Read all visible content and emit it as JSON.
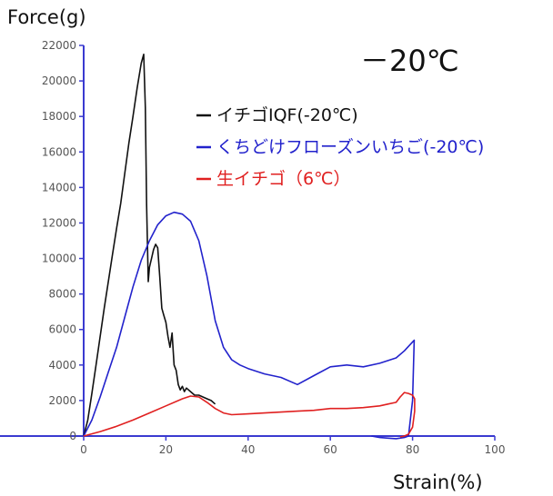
{
  "chart_data": {
    "type": "line",
    "title": "",
    "annotation": "－20℃",
    "xlabel": "Strain(%)",
    "ylabel": "Force(g)",
    "xlim": [
      0,
      100
    ],
    "ylim": [
      0,
      22000
    ],
    "xticks": [
      0,
      20,
      40,
      60,
      80,
      100
    ],
    "yticks": [
      0,
      2000,
      4000,
      6000,
      8000,
      10000,
      12000,
      14000,
      16000,
      18000,
      20000,
      22000
    ],
    "grid": false,
    "legend_position": "upper-right",
    "series": [
      {
        "name": "イチゴIQF(-20℃)",
        "color": "#111111",
        "x": [
          0,
          1,
          2,
          3,
          4,
          5,
          6,
          7,
          8,
          9,
          10,
          11,
          12,
          13,
          14,
          14.6,
          15,
          15.3,
          15.7,
          16,
          16.5,
          17,
          17.5,
          18,
          18.5,
          19,
          19.5,
          20,
          20.5,
          21,
          21.5,
          22,
          22.5,
          23,
          23.5,
          24,
          24.5,
          25,
          26,
          27,
          28,
          29,
          30,
          31,
          32
        ],
        "y": [
          0,
          900,
          2400,
          4000,
          5600,
          7200,
          8700,
          10200,
          11700,
          13100,
          14800,
          16500,
          18000,
          19600,
          21000,
          21500,
          18500,
          13000,
          8700,
          9500,
          10000,
          10500,
          10800,
          10600,
          9000,
          7200,
          6800,
          6400,
          5600,
          5000,
          5800,
          4000,
          3700,
          2900,
          2600,
          2800,
          2500,
          2700,
          2500,
          2300,
          2300,
          2200,
          2100,
          2000,
          1800
        ]
      },
      {
        "name": "くちどけフローズンいちご(-20℃)",
        "color": "#2222cc",
        "x": [
          0,
          2,
          4,
          6,
          8,
          10,
          12,
          14,
          16,
          18,
          20,
          22,
          24,
          26,
          28,
          30,
          32,
          34,
          36,
          38,
          40,
          44,
          48,
          52,
          56,
          60,
          64,
          68,
          72,
          76,
          78,
          80,
          80.4,
          80,
          79,
          78,
          76,
          74,
          72,
          70
        ],
        "y": [
          0,
          900,
          2200,
          3600,
          5000,
          6700,
          8400,
          9900,
          11000,
          11900,
          12400,
          12600,
          12500,
          12100,
          11000,
          9000,
          6500,
          5000,
          4300,
          4000,
          3800,
          3500,
          3300,
          2900,
          3400,
          3900,
          4000,
          3900,
          4100,
          4400,
          4800,
          5300,
          5400,
          2000,
          0,
          -80,
          -150,
          -120,
          -80,
          0
        ]
      },
      {
        "name": "生イチゴ（6℃）",
        "color": "#e02020",
        "x": [
          0,
          4,
          8,
          12,
          16,
          20,
          24,
          26,
          28,
          30,
          32,
          34,
          36,
          40,
          44,
          48,
          52,
          56,
          60,
          64,
          68,
          72,
          74,
          76,
          77,
          78,
          79,
          80,
          80.5,
          80.5,
          80,
          79,
          78,
          77
        ],
        "y": [
          0,
          250,
          550,
          900,
          1300,
          1700,
          2100,
          2250,
          2200,
          1900,
          1550,
          1300,
          1200,
          1250,
          1300,
          1350,
          1400,
          1450,
          1550,
          1550,
          1600,
          1700,
          1800,
          1900,
          2200,
          2450,
          2400,
          2300,
          2100,
          1400,
          500,
          100,
          0,
          -50
        ]
      }
    ]
  }
}
